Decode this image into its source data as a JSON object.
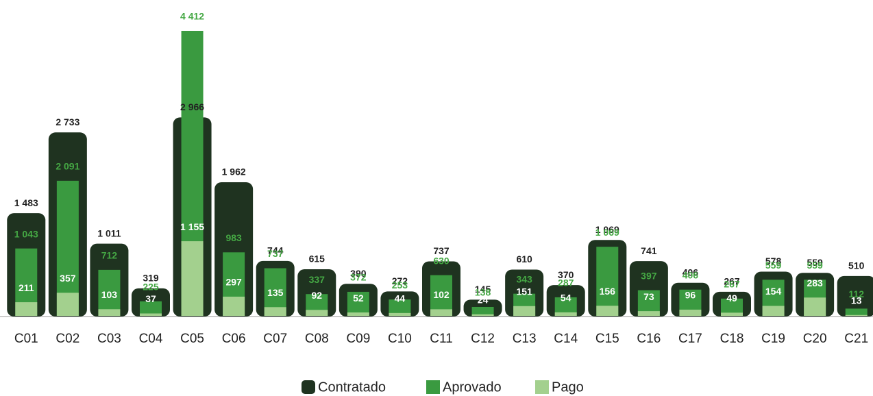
{
  "chart_data": {
    "type": "bar",
    "categories": [
      "C01",
      "C02",
      "C03",
      "C04",
      "C05",
      "C06",
      "C07",
      "C08",
      "C09",
      "C10",
      "C11",
      "C12",
      "C13",
      "C14",
      "C15",
      "C16",
      "C17",
      "C18",
      "C19",
      "C20",
      "C21"
    ],
    "series": [
      {
        "name": "Contratado",
        "color": "#1f3320",
        "label_color": "#222222",
        "values": [
          1483,
          2733,
          1011,
          319,
          2966,
          1962,
          744,
          615,
          390,
          272,
          737,
          145,
          610,
          370,
          1069,
          741,
          406,
          267,
          578,
          559,
          510
        ],
        "value_labels": [
          "1 483",
          "2 733",
          "1 011",
          "319",
          "2 966",
          "1 962",
          "744",
          "615",
          "390",
          "272",
          "737",
          "145",
          "610",
          "370",
          "1 069",
          "741",
          "406",
          "267",
          "578",
          "559",
          "510"
        ]
      },
      {
        "name": "Aprovado",
        "color": "#3a9a40",
        "label_color": "#45a844",
        "values": [
          1043,
          2091,
          712,
          225,
          4412,
          983,
          737,
          337,
          372,
          253,
          630,
          138,
          343,
          287,
          1069,
          397,
          406,
          267,
          559,
          559,
          112
        ],
        "value_labels": [
          "1 043",
          "2 091",
          "712",
          "225",
          "4 412",
          "983",
          "737",
          "337",
          "372",
          "253",
          "630",
          "138",
          "343",
          "287",
          "1 069",
          "397",
          "406",
          "267",
          "559",
          "559",
          "112"
        ]
      },
      {
        "name": "Pago",
        "color": "#a3d08e",
        "label_color": "#ffffff",
        "values": [
          211,
          357,
          103,
          37,
          1155,
          297,
          135,
          92,
          52,
          44,
          102,
          24,
          151,
          54,
          156,
          73,
          96,
          49,
          154,
          283,
          13
        ],
        "value_labels": [
          "211",
          "357",
          "103",
          "37",
          "1 155",
          "297",
          "135",
          "92",
          "52",
          "44",
          "102",
          "24",
          "151",
          "54",
          "156",
          "73",
          "96",
          "49",
          "154",
          "283",
          "13"
        ]
      }
    ],
    "legend": "bottom"
  }
}
